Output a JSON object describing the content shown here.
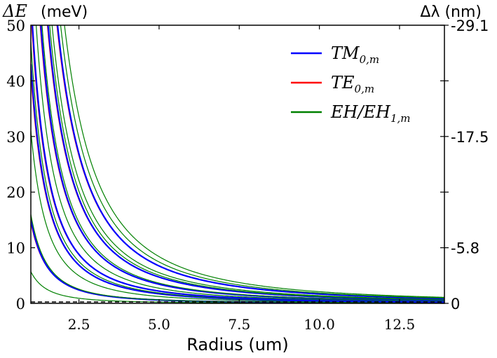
{
  "chart_data": {
    "type": "line",
    "left_axis_label_symbol": "ΔE",
    "left_axis_label_unit": "(meV)",
    "right_axis_label": "Δλ (nm)",
    "xlabel": "Radius (um)",
    "xlim": [
      1.0,
      13.9
    ],
    "ylim": [
      0,
      50
    ],
    "x_ticks": [
      2.5,
      5.0,
      7.5,
      10.0,
      12.5
    ],
    "x_tick_labels": [
      "2.5",
      "5.0",
      "7.5",
      "10.0",
      "12.5"
    ],
    "y_ticks": [
      0,
      10,
      20,
      30,
      40,
      50
    ],
    "y_tick_labels": [
      "0",
      "10",
      "20",
      "30",
      "40",
      "50"
    ],
    "right_ticks": [
      0,
      10,
      20,
      30,
      40,
      50
    ],
    "right_tick_labels": [
      "0",
      "-5.8",
      "",
      "-17.5",
      "",
      "-29.1"
    ],
    "legend_position": "top-right",
    "grid": false,
    "series": [
      {
        "name": "TM",
        "name_sub": "0,m",
        "color": "#0000ff"
      },
      {
        "name": "TE",
        "name_sub": "0,m",
        "color": "#ff0000"
      },
      {
        "name": "EH/EH",
        "name_sub": "1,m",
        "color": "#008000"
      }
    ],
    "curves": [
      {
        "series": "EH/EH",
        "coef": 5.7,
        "width": 1.2
      },
      {
        "series": "TM",
        "coef": 15.1,
        "width": 2.2
      },
      {
        "series": "EH/EH",
        "coef": 16.0,
        "width": 1.2
      },
      {
        "series": "EH/EH",
        "coef": 31,
        "width": 1.2
      },
      {
        "series": "TM",
        "coef": 43,
        "width": 2.2
      },
      {
        "series": "EH/EH",
        "coef": 47,
        "width": 1.2
      },
      {
        "series": "TM",
        "coef": 55,
        "width": 2.2
      },
      {
        "series": "EH/EH",
        "coef": 68,
        "width": 1.2
      },
      {
        "series": "TM",
        "coef": 86,
        "width": 2.2
      },
      {
        "series": "EH/EH",
        "coef": 91,
        "width": 1.2
      },
      {
        "series": "TM",
        "coef": 118,
        "width": 2.2
      },
      {
        "series": "EH/EH",
        "coef": 126,
        "width": 1.2
      },
      {
        "series": "EH/EH",
        "coef": 138,
        "width": 1.2
      },
      {
        "series": "TM",
        "coef": 168,
        "width": 2.2
      },
      {
        "series": "EH/EH",
        "coef": 186,
        "width": 1.2
      },
      {
        "series": "EH/EH",
        "coef": 210,
        "width": 1.2
      }
    ]
  }
}
